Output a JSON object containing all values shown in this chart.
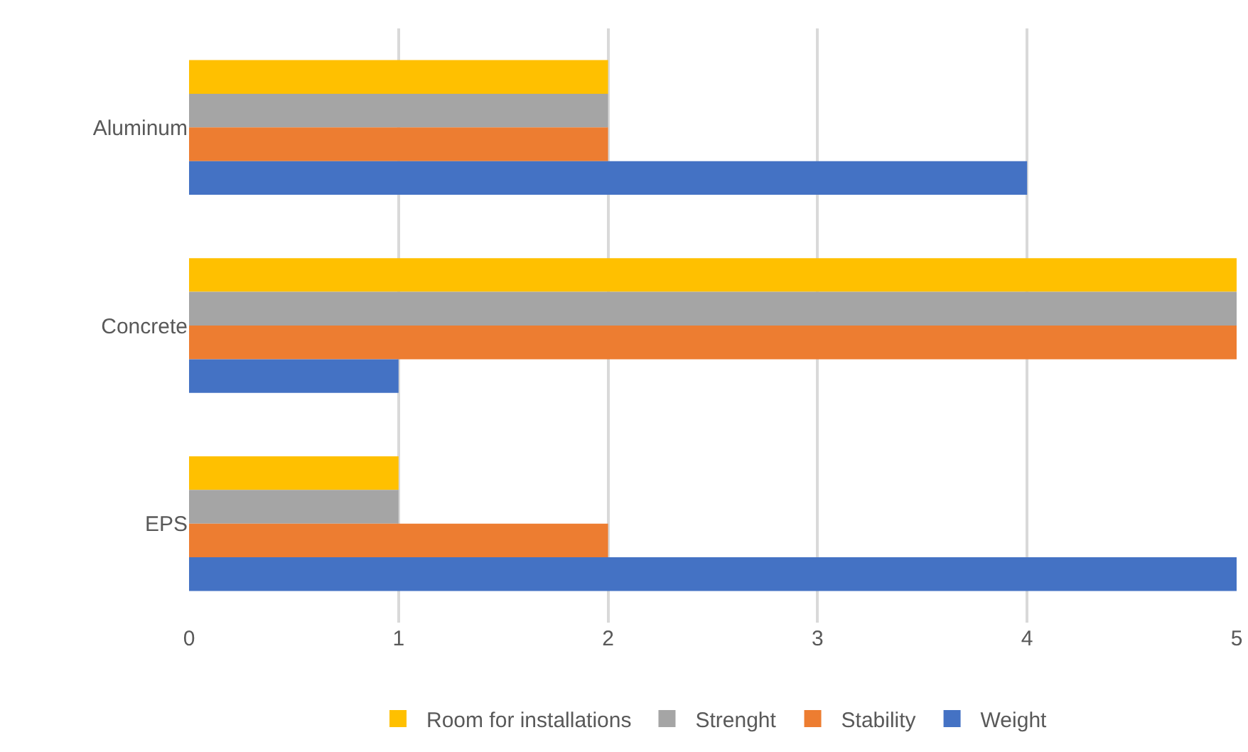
{
  "chart_data": {
    "type": "bar",
    "orientation": "horizontal",
    "categories": [
      "Aluminum",
      "Concrete",
      "EPS"
    ],
    "series": [
      {
        "name": "Room for installations",
        "color": "#ffc000",
        "values": [
          2,
          5,
          1
        ]
      },
      {
        "name": "Strenght",
        "color": "#a5a5a5",
        "values": [
          2,
          5,
          1
        ]
      },
      {
        "name": "Stability",
        "color": "#ed7d31",
        "values": [
          2,
          5,
          2
        ]
      },
      {
        "name": "Weight",
        "color": "#4472c4",
        "values": [
          4,
          1,
          5
        ]
      }
    ],
    "xlim": [
      0,
      5
    ],
    "xticks": [
      0,
      1,
      2,
      3,
      4,
      5
    ],
    "grid": "x",
    "legend": "bottom"
  }
}
